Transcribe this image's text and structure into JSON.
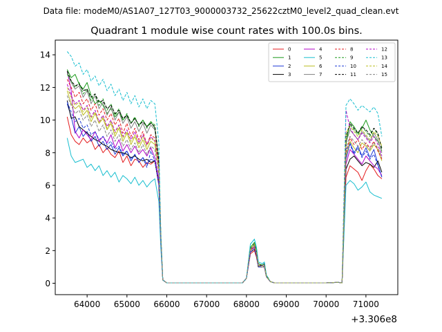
{
  "suptitle": "Data file: modeM0/AS1A07_127T03_9000003732_25622cztM0_level2_quad_clean.evt",
  "chart_data": {
    "type": "line",
    "title": "Quadrant 1 module wise count rates with 100.0s bins.",
    "xlabel": "",
    "ylabel": "",
    "x_offset_label": "+3.306e8",
    "xlim": [
      63200,
      71800
    ],
    "ylim": [
      -0.7,
      14.9
    ],
    "xticks": [
      64000,
      65000,
      66000,
      67000,
      68000,
      69000,
      70000,
      71000
    ],
    "yticks": [
      0,
      2,
      4,
      6,
      8,
      10,
      12,
      14
    ],
    "grid": false,
    "legend": {
      "placement": "top-right",
      "columns": 4
    },
    "x": [
      63500,
      63600,
      63700,
      63800,
      63900,
      64000,
      64100,
      64200,
      64300,
      64400,
      64500,
      64600,
      64700,
      64800,
      64900,
      65000,
      65100,
      65200,
      65300,
      65400,
      65500,
      65600,
      65700,
      65800,
      65850,
      65900,
      66000,
      66500,
      67000,
      67500,
      67900,
      68000,
      68100,
      68200,
      68250,
      68300,
      68400,
      68450,
      68500,
      68600,
      68700,
      69000,
      69500,
      70000,
      70300,
      70400,
      70500,
      70600,
      70700,
      70800,
      70900,
      71000,
      71100,
      71200,
      71300,
      71400
    ],
    "series": [
      {
        "name": "0",
        "color": "#e41a1c",
        "dash": false,
        "values": [
          10.2,
          9.1,
          8.7,
          8.5,
          8.9,
          8.6,
          8.8,
          8.2,
          8.5,
          8.0,
          8.3,
          7.9,
          7.7,
          8.1,
          7.4,
          7.8,
          7.2,
          7.6,
          7.5,
          7.1,
          7.4,
          7.3,
          7.5,
          6.0,
          2.5,
          0.2,
          0.02,
          0.02,
          0.02,
          0.02,
          0.02,
          0.3,
          1.8,
          2.0,
          1.6,
          1.0,
          1.0,
          1.0,
          0.4,
          0.1,
          0.02,
          0.02,
          0.02,
          0.02,
          0.05,
          0.02,
          6.5,
          7.2,
          7.0,
          6.8,
          6.3,
          6.9,
          7.3,
          7.0,
          6.6,
          6.4
        ]
      },
      {
        "name": "1",
        "color": "#1a9a1a",
        "dash": false,
        "values": [
          13.1,
          12.6,
          12.8,
          12.2,
          11.9,
          12.3,
          11.5,
          11.0,
          11.2,
          10.9,
          10.4,
          10.7,
          10.2,
          10.5,
          10.0,
          10.3,
          9.8,
          10.1,
          9.7,
          10.0,
          9.6,
          9.9,
          9.5,
          7.5,
          3.0,
          0.2,
          0.02,
          0.02,
          0.02,
          0.02,
          0.02,
          0.3,
          2.2,
          2.5,
          2.0,
          1.2,
          1.1,
          1.2,
          0.5,
          0.1,
          0.02,
          0.02,
          0.02,
          0.02,
          0.05,
          0.02,
          8.5,
          9.9,
          9.6,
          9.2,
          9.5,
          10.0,
          9.4,
          9.0,
          8.7,
          8.1
        ]
      },
      {
        "name": "2",
        "color": "#1f3bd6",
        "dash": false,
        "values": [
          11.0,
          10.2,
          9.2,
          9.6,
          9.0,
          9.3,
          8.7,
          9.0,
          8.4,
          8.7,
          8.2,
          8.5,
          7.9,
          8.3,
          7.8,
          8.1,
          7.5,
          7.9,
          7.4,
          7.7,
          7.3,
          7.6,
          7.5,
          6.2,
          2.6,
          0.2,
          0.02,
          0.02,
          0.02,
          0.02,
          0.02,
          0.3,
          1.9,
          2.1,
          1.7,
          1.0,
          1.0,
          1.1,
          0.4,
          0.1,
          0.02,
          0.02,
          0.02,
          0.02,
          0.05,
          0.02,
          7.6,
          8.6,
          8.0,
          8.4,
          7.8,
          8.3,
          7.7,
          8.2,
          7.3,
          6.5
        ]
      },
      {
        "name": "3",
        "color": "#000000",
        "dash": false,
        "values": [
          11.2,
          10.1,
          10.2,
          9.6,
          9.4,
          9.2,
          9.0,
          8.8,
          8.7,
          8.5,
          8.4,
          8.2,
          8.1,
          8.0,
          8.0,
          7.9,
          7.7,
          7.8,
          7.6,
          7.5,
          7.6,
          7.4,
          7.5,
          6.1,
          2.6,
          0.2,
          0.02,
          0.02,
          0.02,
          0.02,
          0.02,
          0.3,
          1.9,
          2.1,
          1.7,
          1.0,
          1.0,
          1.0,
          0.4,
          0.1,
          0.02,
          0.02,
          0.02,
          0.02,
          0.05,
          0.02,
          7.0,
          7.6,
          7.8,
          7.5,
          7.2,
          7.4,
          7.3,
          7.1,
          7.5,
          6.8
        ]
      },
      {
        "name": "4",
        "color": "#b000c8",
        "dash": false,
        "values": [
          13.0,
          11.8,
          9.3,
          8.9,
          9.4,
          9.1,
          8.8,
          9.3,
          8.7,
          9.0,
          8.6,
          9.1,
          8.3,
          8.8,
          8.1,
          8.5,
          8.0,
          8.4,
          7.9,
          8.2,
          7.8,
          8.3,
          7.7,
          6.3,
          2.7,
          0.2,
          0.02,
          0.02,
          0.02,
          0.02,
          0.02,
          0.3,
          2.0,
          2.2,
          1.8,
          1.1,
          1.0,
          1.1,
          0.4,
          0.1,
          0.02,
          0.02,
          0.02,
          0.02,
          0.05,
          0.02,
          7.3,
          8.2,
          7.9,
          7.6,
          7.3,
          7.8,
          7.5,
          7.2,
          7.0,
          6.6
        ]
      },
      {
        "name": "5",
        "color": "#17becf",
        "dash": false,
        "values": [
          8.9,
          7.8,
          7.4,
          7.5,
          7.6,
          7.1,
          7.3,
          6.9,
          7.2,
          6.6,
          6.9,
          6.5,
          6.8,
          6.2,
          6.6,
          6.4,
          6.1,
          6.5,
          6.0,
          6.3,
          5.9,
          6.2,
          6.4,
          5.0,
          2.2,
          0.2,
          0.02,
          0.02,
          0.02,
          0.02,
          0.02,
          0.3,
          2.4,
          2.7,
          2.2,
          1.3,
          1.2,
          1.3,
          0.5,
          0.1,
          0.02,
          0.02,
          0.02,
          0.02,
          0.05,
          0.02,
          6.0,
          6.3,
          6.1,
          5.7,
          5.9,
          6.2,
          5.6,
          5.4,
          5.3,
          5.2
        ]
      },
      {
        "name": "6",
        "color": "#bcbd22",
        "dash": false,
        "values": [
          11.8,
          11.0,
          10.7,
          10.9,
          10.3,
          10.6,
          9.9,
          10.4,
          9.8,
          10.1,
          9.4,
          9.8,
          9.0,
          9.5,
          8.7,
          9.2,
          8.5,
          9.0,
          8.3,
          8.8,
          8.2,
          8.7,
          8.5,
          7.0,
          2.9,
          0.2,
          0.02,
          0.02,
          0.02,
          0.02,
          0.02,
          0.3,
          2.0,
          2.3,
          1.8,
          1.1,
          1.0,
          1.1,
          0.4,
          0.1,
          0.02,
          0.02,
          0.02,
          0.02,
          0.05,
          0.02,
          7.8,
          8.7,
          8.3,
          8.0,
          8.6,
          8.4,
          8.1,
          8.5,
          8.2,
          7.5
        ]
      },
      {
        "name": "7",
        "color": "#808080",
        "dash": false,
        "values": [
          12.9,
          12.3,
          11.9,
          12.1,
          11.4,
          11.8,
          11.0,
          11.5,
          10.7,
          11.1,
          10.3,
          10.8,
          10.0,
          10.5,
          9.8,
          10.2,
          9.5,
          9.9,
          9.3,
          9.8,
          9.2,
          9.7,
          9.4,
          7.4,
          3.0,
          0.2,
          0.02,
          0.02,
          0.02,
          0.02,
          0.02,
          0.3,
          2.1,
          2.4,
          1.9,
          1.1,
          1.1,
          1.2,
          0.4,
          0.1,
          0.02,
          0.02,
          0.02,
          0.02,
          0.05,
          0.02,
          8.6,
          9.4,
          9.1,
          8.8,
          9.3,
          9.0,
          8.7,
          9.2,
          8.8,
          8.0
        ]
      },
      {
        "name": "8",
        "color": "#e41a1c",
        "dash": true,
        "values": [
          12.5,
          12.0,
          11.4,
          11.7,
          11.0,
          11.3,
          10.6,
          11.0,
          10.3,
          10.7,
          10.0,
          10.4,
          9.7,
          10.1,
          9.2,
          9.8,
          9.0,
          9.5,
          8.8,
          9.3,
          8.5,
          9.1,
          8.9,
          7.2,
          2.9,
          0.2,
          0.02,
          0.02,
          0.02,
          0.02,
          0.02,
          0.3,
          2.0,
          2.2,
          1.8,
          1.1,
          1.0,
          1.1,
          0.4,
          0.1,
          0.02,
          0.02,
          0.02,
          0.02,
          0.05,
          0.02,
          8.0,
          8.9,
          8.5,
          8.8,
          8.2,
          8.6,
          8.3,
          8.7,
          8.1,
          7.6
        ]
      },
      {
        "name": "9",
        "color": "#1a9a1a",
        "dash": true,
        "values": [
          12.8,
          12.4,
          12.0,
          12.3,
          11.6,
          11.9,
          11.2,
          11.6,
          10.9,
          11.3,
          10.6,
          11.0,
          10.3,
          10.7,
          10.0,
          10.4,
          9.8,
          10.2,
          9.6,
          10.0,
          9.5,
          9.9,
          9.7,
          7.6,
          3.0,
          0.2,
          0.02,
          0.02,
          0.02,
          0.02,
          0.02,
          0.3,
          2.2,
          2.5,
          2.0,
          1.2,
          1.1,
          1.2,
          0.5,
          0.1,
          0.02,
          0.02,
          0.02,
          0.02,
          0.05,
          0.02,
          8.8,
          9.7,
          9.4,
          9.1,
          9.6,
          9.3,
          9.0,
          9.5,
          9.1,
          8.3
        ]
      },
      {
        "name": "10",
        "color": "#1f3bd6",
        "dash": true,
        "values": [
          11.1,
          10.5,
          9.9,
          10.1,
          9.5,
          9.7,
          9.1,
          9.3,
          8.8,
          9.0,
          8.5,
          8.7,
          8.2,
          8.4,
          7.9,
          8.1,
          7.6,
          7.9,
          7.4,
          7.7,
          7.1,
          8.1,
          7.5,
          6.0,
          2.6,
          0.2,
          0.02,
          0.02,
          0.02,
          0.02,
          0.02,
          0.3,
          1.9,
          2.1,
          1.7,
          1.0,
          1.0,
          1.0,
          0.4,
          0.1,
          0.02,
          0.02,
          0.02,
          0.02,
          0.05,
          0.02,
          8.2,
          8.5,
          7.9,
          8.3,
          7.7,
          8.1,
          7.6,
          7.9,
          7.2,
          6.5
        ]
      },
      {
        "name": "11",
        "color": "#000000",
        "dash": true,
        "values": [
          13.0,
          12.4,
          12.1,
          12.2,
          11.8,
          11.9,
          11.4,
          11.6,
          11.1,
          11.2,
          10.7,
          10.9,
          10.4,
          10.6,
          10.1,
          10.3,
          9.8,
          10.1,
          9.7,
          9.9,
          9.6,
          9.8,
          9.6,
          7.5,
          3.0,
          0.2,
          0.02,
          0.02,
          0.02,
          0.02,
          0.02,
          0.3,
          2.1,
          2.4,
          1.9,
          1.1,
          1.1,
          1.2,
          0.4,
          0.1,
          0.02,
          0.02,
          0.02,
          0.02,
          0.05,
          0.02,
          9.0,
          9.8,
          9.5,
          9.2,
          9.6,
          9.4,
          9.1,
          9.5,
          9.2,
          8.2
        ]
      },
      {
        "name": "12",
        "color": "#b000c8",
        "dash": true,
        "values": [
          12.2,
          11.5,
          11.0,
          11.2,
          10.6,
          10.9,
          10.2,
          10.6,
          9.9,
          10.3,
          9.6,
          10.0,
          9.3,
          9.7,
          9.0,
          9.4,
          8.8,
          9.3,
          8.6,
          9.1,
          8.5,
          9.0,
          8.7,
          7.0,
          2.8,
          0.2,
          0.02,
          0.02,
          0.02,
          0.02,
          0.02,
          0.3,
          2.0,
          2.3,
          1.8,
          1.1,
          1.0,
          1.1,
          0.4,
          0.1,
          0.02,
          0.02,
          0.02,
          0.02,
          0.05,
          0.02,
          10.6,
          9.5,
          9.1,
          8.8,
          9.2,
          8.9,
          8.6,
          9.0,
          8.5,
          7.8
        ]
      },
      {
        "name": "13",
        "color": "#17becf",
        "dash": true,
        "values": [
          14.2,
          13.9,
          13.3,
          13.5,
          12.8,
          13.1,
          12.4,
          12.7,
          12.1,
          12.5,
          11.8,
          12.2,
          11.5,
          11.9,
          11.2,
          11.7,
          11.0,
          11.5,
          10.8,
          11.3,
          10.7,
          11.2,
          11.0,
          8.6,
          3.3,
          0.2,
          0.02,
          0.02,
          0.02,
          0.02,
          0.02,
          0.3,
          2.4,
          2.7,
          2.2,
          1.3,
          1.2,
          1.3,
          0.5,
          0.1,
          0.02,
          0.02,
          0.02,
          0.02,
          0.05,
          0.02,
          10.9,
          11.3,
          11.0,
          10.6,
          10.9,
          10.7,
          10.5,
          10.8,
          10.4,
          9.0
        ]
      },
      {
        "name": "14",
        "color": "#bcbd22",
        "dash": true,
        "values": [
          12.0,
          11.4,
          10.9,
          11.1,
          10.5,
          10.8,
          10.1,
          10.5,
          9.8,
          10.2,
          9.5,
          9.9,
          9.2,
          9.6,
          8.9,
          9.3,
          8.7,
          9.1,
          8.5,
          9.0,
          8.4,
          8.9,
          8.7,
          7.0,
          2.9,
          0.2,
          0.02,
          0.02,
          0.02,
          0.02,
          0.02,
          0.3,
          2.1,
          2.4,
          1.9,
          1.1,
          1.0,
          1.1,
          0.4,
          0.1,
          0.02,
          0.02,
          0.02,
          0.02,
          0.05,
          0.02,
          9.2,
          9.6,
          9.3,
          9.0,
          9.4,
          9.1,
          8.8,
          9.3,
          9.0,
          8.4
        ]
      },
      {
        "name": "15",
        "color": "#808080",
        "dash": true,
        "values": [
          11.5,
          10.9,
          10.4,
          10.6,
          10.0,
          10.3,
          9.6,
          10.0,
          9.3,
          9.7,
          9.0,
          9.4,
          8.7,
          9.1,
          8.4,
          8.8,
          8.2,
          8.6,
          8.0,
          8.5,
          7.9,
          8.4,
          8.2,
          6.6,
          2.8,
          0.2,
          0.02,
          0.02,
          0.02,
          0.02,
          0.02,
          0.3,
          2.0,
          2.3,
          1.8,
          1.1,
          1.0,
          1.1,
          0.4,
          0.1,
          0.02,
          0.02,
          0.02,
          0.02,
          0.05,
          0.02,
          8.3,
          9.0,
          8.7,
          8.4,
          8.8,
          8.5,
          8.2,
          8.6,
          8.3,
          7.7
        ]
      }
    ]
  }
}
